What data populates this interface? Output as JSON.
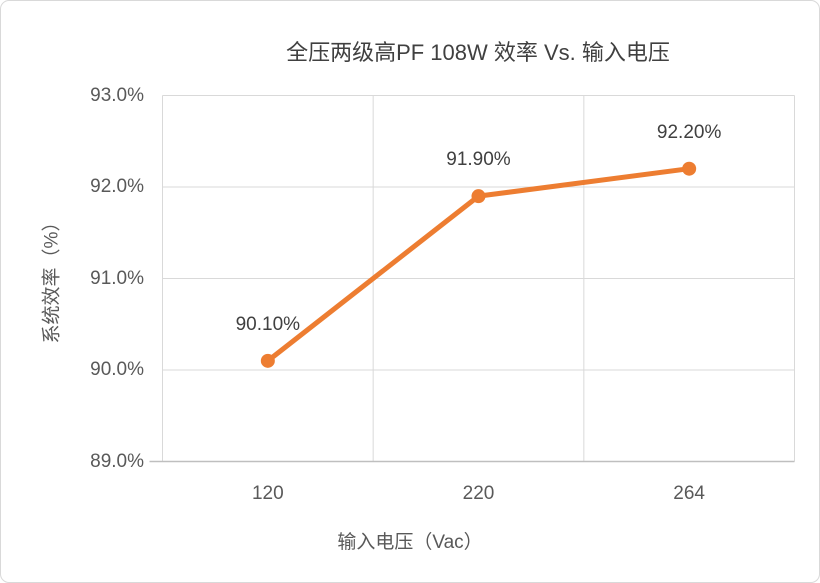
{
  "chart_data": {
    "type": "line",
    "title": "全压两级高PF 108W 效率 Vs. 输入电压",
    "xlabel": "输入电压（Vac）",
    "ylabel": "系统效率（%）",
    "categories": [
      "120",
      "220",
      "264"
    ],
    "values": [
      90.1,
      91.9,
      92.2
    ],
    "data_labels": [
      "90.10%",
      "91.90%",
      "92.20%"
    ],
    "ylim": [
      89.0,
      93.0
    ],
    "ytick_values": [
      93,
      92,
      91,
      90,
      89
    ],
    "ytick_labels": [
      "93.0%",
      "92.0%",
      "91.0%",
      "90.0%",
      "89.0%"
    ],
    "grid": true,
    "legend": "none",
    "colors": {
      "series": "#ED7D31",
      "gridline": "#D9D9D9",
      "axis_line": "#BFBFBF",
      "data_label_text": "#404040",
      "tick_text": "#595959"
    }
  }
}
